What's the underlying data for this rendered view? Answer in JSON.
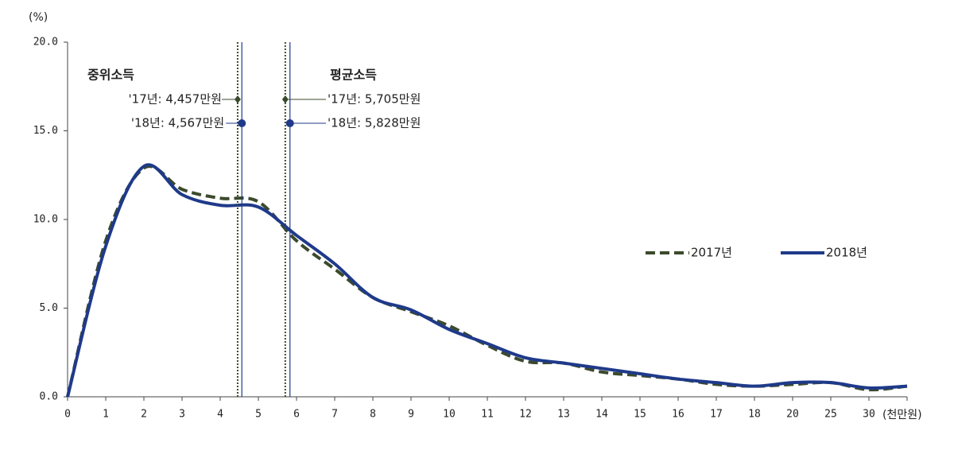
{
  "chart_data": {
    "type": "line",
    "y_label": "(%)",
    "x_label": "(천만원)",
    "categories": [
      0,
      1,
      2,
      3,
      4,
      5,
      6,
      7,
      8,
      9,
      10,
      11,
      12,
      13,
      14,
      15,
      16,
      17,
      18,
      20,
      25,
      30,
      null
    ],
    "series": [
      {
        "name": "2017년",
        "color": "#3b4a2c",
        "dash": true,
        "values": [
          0,
          8.8,
          12.9,
          11.7,
          11.2,
          11.0,
          8.8,
          7.2,
          5.6,
          4.8,
          4.0,
          2.9,
          2.0,
          1.9,
          1.4,
          1.2,
          1.0,
          0.7,
          0.6,
          0.7,
          0.8,
          0.4,
          0.6
        ]
      },
      {
        "name": "2018년",
        "color": "#1f3a8a",
        "dash": false,
        "values": [
          0,
          8.5,
          13.0,
          11.4,
          10.8,
          10.7,
          9.1,
          7.5,
          5.6,
          4.9,
          3.8,
          3.0,
          2.2,
          1.9,
          1.6,
          1.3,
          1.0,
          0.8,
          0.6,
          0.8,
          0.8,
          0.5,
          0.6
        ]
      }
    ],
    "ylim": [
      0,
      20
    ],
    "yticks": [
      {
        "value": 0,
        "label": "0.0"
      },
      {
        "value": 5,
        "label": "5.0"
      },
      {
        "value": 10,
        "label": "10.0"
      },
      {
        "value": 15,
        "label": "15.0"
      },
      {
        "value": 20,
        "label": "20.0"
      }
    ],
    "groups": [
      {
        "title": "중위소득",
        "markers": [
          {
            "label": "'17년: 4,457만원",
            "x": 4.457,
            "series": 0
          },
          {
            "label": "'18년: 4,567만원",
            "x": 4.567,
            "series": 1
          }
        ]
      },
      {
        "title": "평균소득",
        "markers": [
          {
            "label": "'17년: 5,705만원",
            "x": 5.705,
            "series": 0
          },
          {
            "label": "'18년: 5,828만원",
            "x": 5.828,
            "series": 1
          }
        ]
      }
    ]
  }
}
